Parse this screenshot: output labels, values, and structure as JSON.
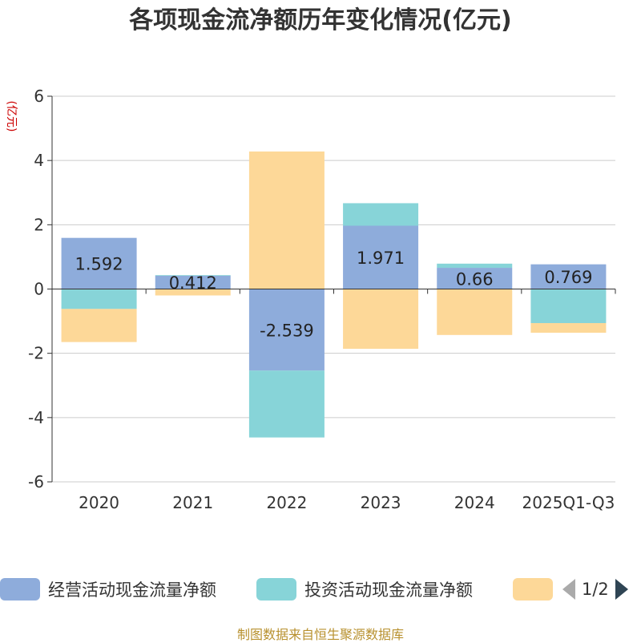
{
  "title": "各项现金流净额历年变化情况(亿元)",
  "chart_data": {
    "type": "bar",
    "stacked": true,
    "ylabel": "(亿元)",
    "ylim": [
      -6,
      6
    ],
    "yticks": [
      6,
      4,
      2,
      0,
      -2,
      -4,
      -6
    ],
    "categories": [
      "2020",
      "2021",
      "2022",
      "2023",
      "2024",
      "2025Q1-Q3"
    ],
    "series": [
      {
        "name": "经营活动现金流量净额",
        "color": "#8eacdb",
        "values": [
          1.592,
          0.412,
          -2.539,
          1.971,
          0.66,
          0.769
        ],
        "labels": true
      },
      {
        "name": "投资活动现金流量净额",
        "color": "#87d4d8",
        "values": [
          -0.62,
          0.02,
          -2.08,
          0.7,
          0.13,
          -1.06
        ],
        "labels": false
      },
      {
        "name": "",
        "color": "#fdd898",
        "values": [
          -1.03,
          -0.2,
          4.28,
          -1.86,
          -1.43,
          -0.3
        ],
        "labels": false
      }
    ]
  },
  "legend": {
    "items": [
      {
        "label": "经营活动现金流量净额",
        "color": "#8eacdb"
      },
      {
        "label": "投资活动现金流量净额",
        "color": "#87d4d8"
      },
      {
        "label": "",
        "color": "#fdd898"
      }
    ],
    "page": "1/2",
    "active_arrow_color": "#2f4554",
    "inactive_arrow_color": "#aaaaaa"
  },
  "footer": "制图数据来自恒生聚源数据库"
}
